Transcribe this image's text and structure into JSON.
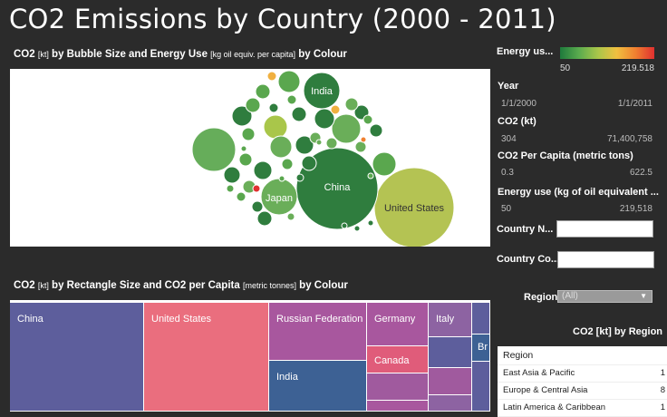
{
  "title": "CO2 Emissions by Country (2000 - 2011)",
  "bubble": {
    "subtitle_a": "CO2 ",
    "subtitle_b": "[kt]",
    "subtitle_c": " by Bubble Size and Energy Use ",
    "subtitle_d": "[kg oil equiv. per capita]",
    "subtitle_e": " by Colour",
    "labels": {
      "india": "India",
      "china": "China",
      "japan": "Japan",
      "us": "United States"
    }
  },
  "treemap": {
    "subtitle_a": "CO2 ",
    "subtitle_b": "[kt]",
    "subtitle_c": " by Rectangle Size and CO2 per Capita ",
    "subtitle_d": "[metric tonnes]",
    "subtitle_e": " by Colour",
    "cells": {
      "china": "China",
      "us": "United States",
      "russia": "Russian Federation",
      "germany": "Germany",
      "italy": "Italy",
      "india": "India",
      "canada": "Canada",
      "br": "Br"
    }
  },
  "filters": {
    "energy_legend": {
      "label": "Energy us...",
      "min": "50",
      "max": "219.518"
    },
    "year": {
      "label": "Year",
      "min": "1/1/2000",
      "max": "1/1/2011"
    },
    "co2": {
      "label": "CO2 (kt)",
      "min": "304",
      "max": "71,400,758"
    },
    "co2_per_capita": {
      "label": "CO2 Per Capita (metric tons)",
      "min": "0.3",
      "max": "622.5"
    },
    "energy_use": {
      "label": "Energy use (kg of oil equivalent ...",
      "min": "50",
      "max": "219,518"
    },
    "country_name": {
      "label": "Country N..."
    },
    "country_code": {
      "label": "Country Co..."
    },
    "region": {
      "label": "Region",
      "value": "(All)"
    }
  },
  "region_table": {
    "title": "CO2 [kt] by Region",
    "header": "Region",
    "rows": [
      {
        "name": "East Asia & Pacific",
        "value": "1"
      },
      {
        "name": "Europe & Central Asia",
        "value": "8"
      },
      {
        "name": "Latin America & Caribbean",
        "value": "1"
      }
    ]
  }
}
